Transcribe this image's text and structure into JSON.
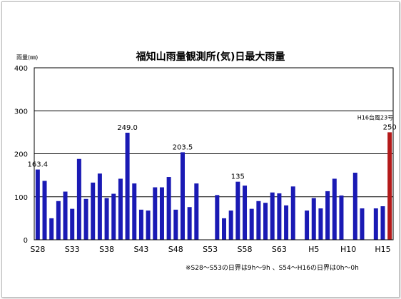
{
  "chart_data": {
    "type": "bar",
    "title": "福知山雨量観測所(気)日最大雨量",
    "ylabel": "雨量(㎜)",
    "xlabel": "",
    "ylim": [
      0,
      400
    ],
    "yticks": [
      "0",
      "100",
      "200",
      "300",
      "400"
    ],
    "grid": true,
    "categories": [
      "S28",
      "S29",
      "S30",
      "S31",
      "S32",
      "S33",
      "S34",
      "S35",
      "S36",
      "S37",
      "S38",
      "S39",
      "S40",
      "S41",
      "S42",
      "S43",
      "S44",
      "S45",
      "S46",
      "S47",
      "S48",
      "S49",
      "S50",
      "S51",
      "S52",
      "S53",
      "S54",
      "S55",
      "S56",
      "S57",
      "S58",
      "S59",
      "S60",
      "S61",
      "S62",
      "S63",
      "H1",
      "H2",
      "H3",
      "H4",
      "H5",
      "H6",
      "H7",
      "H8",
      "H9",
      "H10",
      "H11",
      "H12",
      "H13",
      "H14",
      "H15",
      "H16"
    ],
    "tick_labels": [
      {
        "label": "S28",
        "category": "S28"
      },
      {
        "label": "S33",
        "category": "S33"
      },
      {
        "label": "S38",
        "category": "S38"
      },
      {
        "label": "S43",
        "category": "S43"
      },
      {
        "label": "S48",
        "category": "S48"
      },
      {
        "label": "S53",
        "category": "S53"
      },
      {
        "label": "S58",
        "category": "S58"
      },
      {
        "label": "S63",
        "category": "S63"
      },
      {
        "label": "H5",
        "category": "H5"
      },
      {
        "label": "H10",
        "category": "H10"
      },
      {
        "label": "H15",
        "category": "H15"
      }
    ],
    "values": [
      163.4,
      137,
      50,
      90,
      112,
      72,
      188,
      95,
      133,
      154,
      97,
      107,
      142,
      249.0,
      131,
      70,
      68,
      122,
      122,
      146,
      70,
      203.5,
      76,
      131,
      null,
      null,
      104,
      50,
      68,
      135,
      126,
      72,
      90,
      86,
      110,
      108,
      80,
      124,
      null,
      68,
      97,
      73,
      113,
      142,
      103,
      null,
      156,
      73,
      null,
      73,
      78,
      250
    ],
    "highlight_index": 51,
    "colors": {
      "bar": "#1a1ab4",
      "highlight": "#b41a1a",
      "grid": "#000000"
    },
    "data_labels": [
      {
        "category": "S28",
        "text": "163.4"
      },
      {
        "category": "S41",
        "text": "249.0"
      },
      {
        "category": "S49",
        "text": "203.5"
      },
      {
        "category": "S57",
        "text": "135"
      },
      {
        "category": "H16",
        "text": "250"
      }
    ],
    "annotations": [
      {
        "category": "H16",
        "text": "H16台風23号"
      }
    ],
    "note": "※S28～S53の日界は9h～9h 、S54～H16の日界は0h～0h"
  }
}
